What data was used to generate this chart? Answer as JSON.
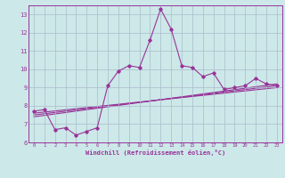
{
  "xlabel": "Windchill (Refroidissement éolien,°C)",
  "xlim": [
    -0.5,
    23.5
  ],
  "ylim": [
    6,
    13.5
  ],
  "yticks": [
    6,
    7,
    8,
    9,
    10,
    11,
    12,
    13
  ],
  "xticks": [
    0,
    1,
    2,
    3,
    4,
    5,
    6,
    7,
    8,
    9,
    10,
    11,
    12,
    13,
    14,
    15,
    16,
    17,
    18,
    19,
    20,
    21,
    22,
    23
  ],
  "bg_color": "#cce8e8",
  "grid_color": "#aabbcc",
  "line_color": "#993399",
  "main_series_x": [
    0,
    1,
    2,
    3,
    4,
    5,
    6,
    7,
    8,
    9,
    10,
    11,
    12,
    13,
    14,
    15,
    16,
    17,
    18,
    19,
    20,
    21,
    22,
    23
  ],
  "main_series_y": [
    7.7,
    7.8,
    6.7,
    6.8,
    6.4,
    6.6,
    6.8,
    9.1,
    9.9,
    10.2,
    10.1,
    11.6,
    13.3,
    12.2,
    10.2,
    10.1,
    9.6,
    9.8,
    8.9,
    9.0,
    9.1,
    9.5,
    9.2,
    9.1
  ],
  "trend_lines": [
    {
      "x": [
        0,
        23
      ],
      "y": [
        7.6,
        9.0
      ]
    },
    {
      "x": [
        0,
        23
      ],
      "y": [
        7.5,
        9.1
      ]
    },
    {
      "x": [
        0,
        23
      ],
      "y": [
        7.4,
        9.2
      ]
    }
  ]
}
